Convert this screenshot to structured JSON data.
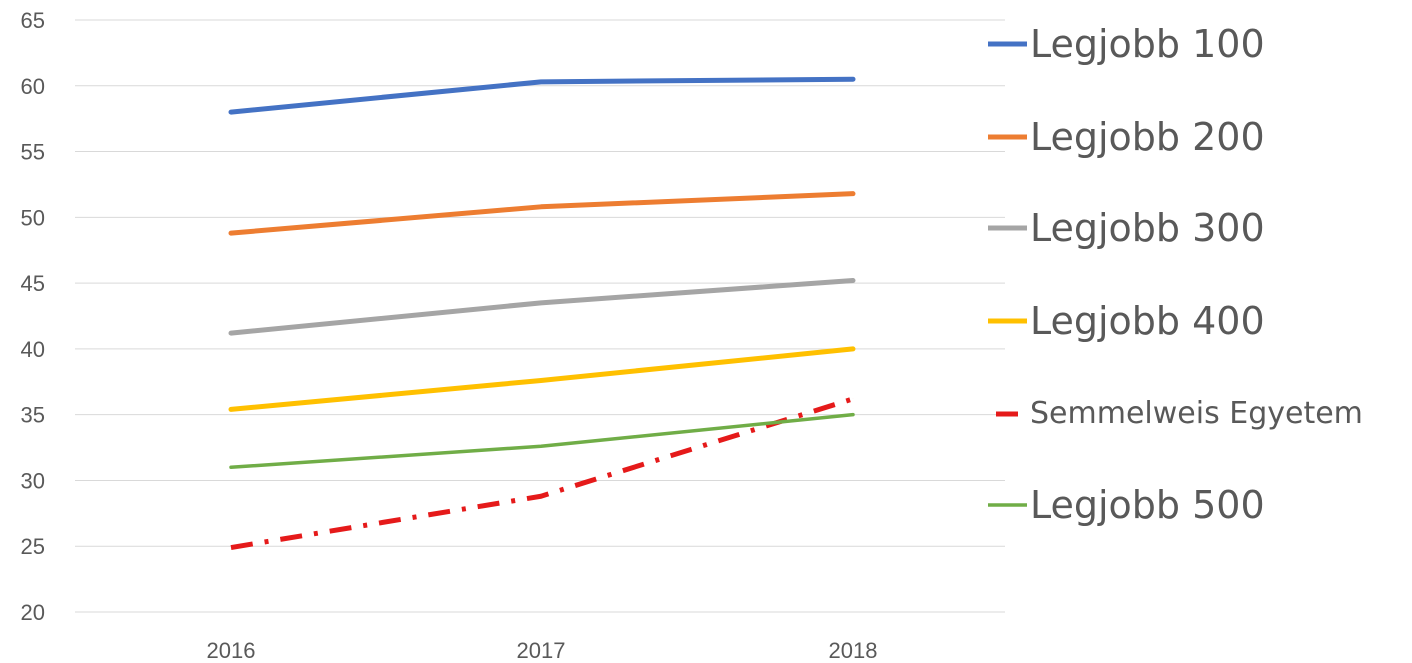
{
  "chart_data": {
    "type": "line",
    "categories": [
      "2016",
      "2017",
      "2018"
    ],
    "ylim": [
      20,
      65
    ],
    "yticks": [
      20,
      25,
      30,
      35,
      40,
      45,
      50,
      55,
      60,
      65
    ],
    "grid": true,
    "legend_position": "right",
    "series": [
      {
        "name": "Legjobb 100",
        "values": [
          58.0,
          60.3,
          60.5
        ],
        "color": "#4472C4",
        "style": "solid"
      },
      {
        "name": "Legjobb 200",
        "values": [
          48.8,
          50.8,
          51.8
        ],
        "color": "#ED7D31",
        "style": "solid"
      },
      {
        "name": "Legjobb 300",
        "values": [
          41.2,
          43.5,
          45.2
        ],
        "color": "#A5A5A5",
        "style": "solid"
      },
      {
        "name": "Legjobb 400",
        "values": [
          35.4,
          37.6,
          40.0
        ],
        "color": "#FFC000",
        "style": "solid"
      },
      {
        "name": "Semmelweis Egyetem",
        "values": [
          24.9,
          28.8,
          36.2
        ],
        "color": "#E51A1A",
        "style": "dashdot"
      },
      {
        "name": "Legjobb 500",
        "values": [
          31.0,
          32.6,
          35.0
        ],
        "color": "#70AD47",
        "style": "solid"
      }
    ]
  }
}
